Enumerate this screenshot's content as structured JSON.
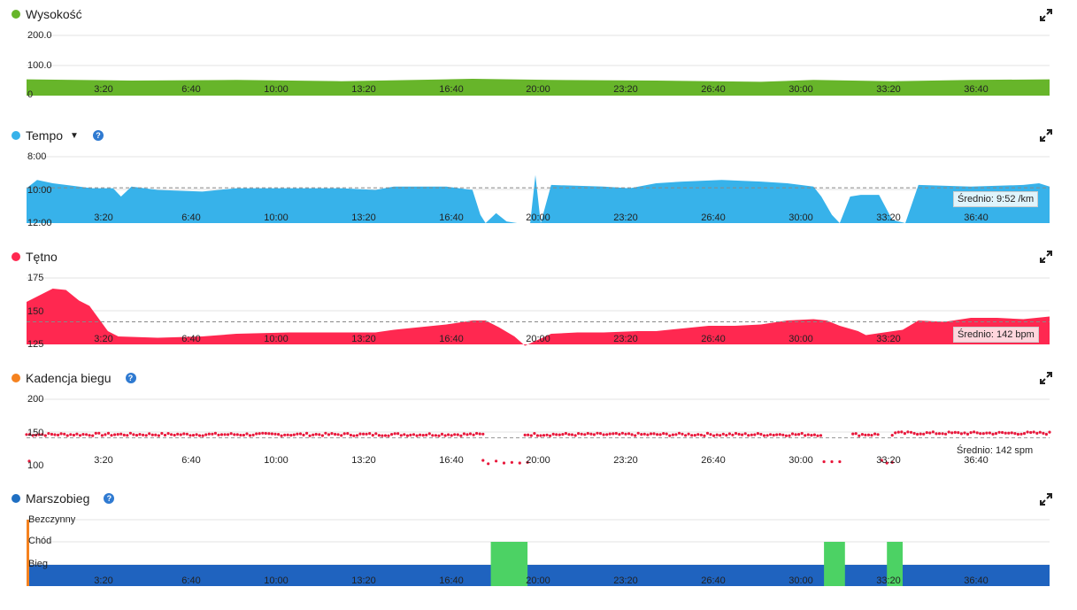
{
  "x_ticks": [
    "3:20",
    "6:40",
    "10:00",
    "13:20",
    "16:40",
    "20:00",
    "23:20",
    "26:40",
    "30:00",
    "33:20",
    "36:40"
  ],
  "panels": {
    "elevation": {
      "title": "Wysokość",
      "color": "#67b52a",
      "y_ticks": [
        "200.0",
        "100.0",
        "0"
      ],
      "ylim": [
        0,
        240
      ]
    },
    "pace": {
      "title": "Tempo",
      "color": "#37b2ea",
      "y_ticks": [
        "8:00",
        "10:00",
        "12:00"
      ],
      "avg_label": "Średnio: 9:52 /km"
    },
    "hr": {
      "title": "Tętno",
      "color": "#ff2850",
      "y_ticks": [
        "175",
        "150",
        "125"
      ],
      "avg_label": "Średnio: 142 bpm"
    },
    "cadence": {
      "title": "Kadencja biegu",
      "color": "#f5821f",
      "dot_color": "#e8193c",
      "y_ticks": [
        "200",
        "150",
        "100"
      ],
      "avg_label": "Średnio: 142 spm"
    },
    "activity": {
      "title": "Marszobieg",
      "color": "#1f6fc2",
      "run_color": "#1f63bf",
      "walk_color": "#4cd264",
      "idle_color": "#f5821f",
      "y_ticks": [
        "Bezczynny",
        "Chód",
        "Bieg"
      ]
    }
  },
  "chart_data": [
    {
      "type": "area",
      "title": "Wysokość",
      "x_minutes": [
        0,
        4,
        8,
        12,
        16,
        17,
        20,
        24,
        28,
        30,
        33,
        36,
        39
      ],
      "values": [
        54,
        50,
        52,
        48,
        54,
        56,
        52,
        50,
        46,
        52,
        48,
        52,
        54
      ],
      "ylim": [
        0,
        240
      ]
    },
    {
      "type": "area",
      "title": "Tempo",
      "x_minutes": [
        0,
        0.4,
        1,
        1.5,
        2.5,
        3.3,
        3.6,
        4,
        5,
        6.7,
        8,
        10,
        12,
        13.3,
        14,
        15,
        16,
        17,
        17.3,
        17.5,
        17.9,
        18.3,
        18.7,
        19.2,
        19.4,
        19.6,
        20,
        22,
        23,
        24,
        25,
        26.5,
        28,
        29,
        30,
        30.3,
        30.7,
        31,
        31.4,
        31.8,
        32.5,
        33,
        33.5,
        34,
        36,
        38,
        38.6,
        39
      ],
      "values_min_per_km": [
        9.9,
        9.4,
        9.6,
        9.7,
        9.9,
        9.9,
        10.4,
        9.8,
        10.0,
        10.1,
        9.9,
        9.9,
        9.9,
        10.0,
        9.8,
        9.8,
        9.8,
        10.0,
        11.5,
        12.0,
        11.4,
        11.9,
        12.0,
        12.0,
        9.1,
        12.0,
        9.7,
        9.8,
        9.9,
        9.6,
        9.5,
        9.4,
        9.5,
        9.6,
        9.8,
        10.4,
        11.5,
        12.0,
        10.4,
        10.3,
        10.3,
        11.8,
        12.0,
        9.7,
        9.8,
        9.7,
        9.6,
        9.8
      ],
      "ylim": [
        8,
        12
      ],
      "average_min_per_km": 9.87
    },
    {
      "type": "area",
      "title": "Tętno",
      "x_minutes": [
        0,
        0.7,
        1,
        1.5,
        2,
        2.4,
        3.1,
        3.5,
        5,
        6.7,
        8,
        10,
        13.3,
        14,
        15,
        16,
        17,
        17.5,
        18,
        18.6,
        19,
        20,
        21,
        22,
        23.3,
        24,
        25,
        26,
        27,
        28,
        29,
        30,
        30.5,
        31,
        31.7,
        32,
        33.4,
        34,
        35,
        36,
        37,
        38,
        39
      ],
      "values_bpm": [
        157,
        164,
        167,
        166,
        158,
        154,
        135,
        131,
        130,
        131,
        133,
        134,
        134,
        136,
        138,
        140,
        143,
        143,
        138,
        131,
        124,
        133,
        134,
        134,
        135,
        135,
        137,
        139,
        139,
        140,
        143,
        144,
        143,
        139,
        135,
        132,
        136,
        143,
        142,
        145,
        145,
        144,
        146
      ],
      "ylim": [
        125,
        175
      ],
      "average_bpm": 142
    },
    {
      "type": "scatter",
      "title": "Kadencja biegu",
      "series_note": "dots ~145-150 spm across run with gaps at walking segments",
      "segments_minutes": [
        [
          0,
          17.5
        ],
        [
          19,
          30.3
        ],
        [
          31.5,
          32.5
        ],
        [
          33,
          39
        ]
      ],
      "level_spm": 147,
      "ylim": [
        100,
        200
      ],
      "average_spm": 142
    },
    {
      "type": "bar",
      "title": "Marszobieg",
      "categories": [
        "Bieg",
        "Chód",
        "Bezczynny"
      ],
      "walk_intervals_minutes": [
        [
          17.7,
          19.1
        ],
        [
          30.4,
          31.2
        ],
        [
          32.8,
          33.4
        ]
      ]
    }
  ]
}
